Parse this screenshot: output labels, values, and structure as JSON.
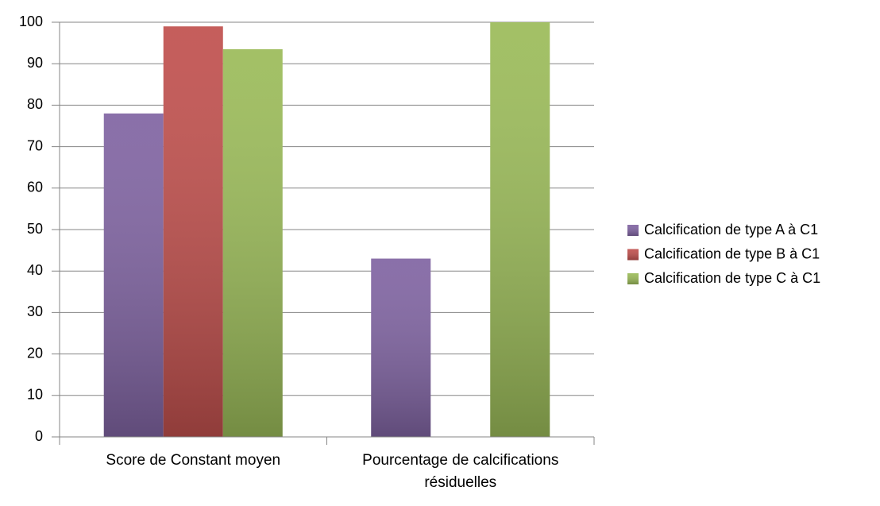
{
  "chart_data": {
    "type": "bar",
    "categories": [
      "Score de Constant moyen",
      "Pourcentage de calcifications résiduelles"
    ],
    "series": [
      {
        "name": "Calcification de type A à C1",
        "color": "#8064a2",
        "values": [
          78,
          43
        ]
      },
      {
        "name": "Calcification de type B à C1",
        "color": "#c0504d",
        "values": [
          99,
          0
        ]
      },
      {
        "name": "Calcification de type C à C1",
        "color": "#9bbb59",
        "values": [
          93.5,
          100
        ]
      }
    ],
    "ylim": [
      0,
      100
    ],
    "yticks": [
      0,
      10,
      20,
      30,
      40,
      50,
      60,
      70,
      80,
      90,
      100
    ],
    "grid": true,
    "legend": "right"
  }
}
